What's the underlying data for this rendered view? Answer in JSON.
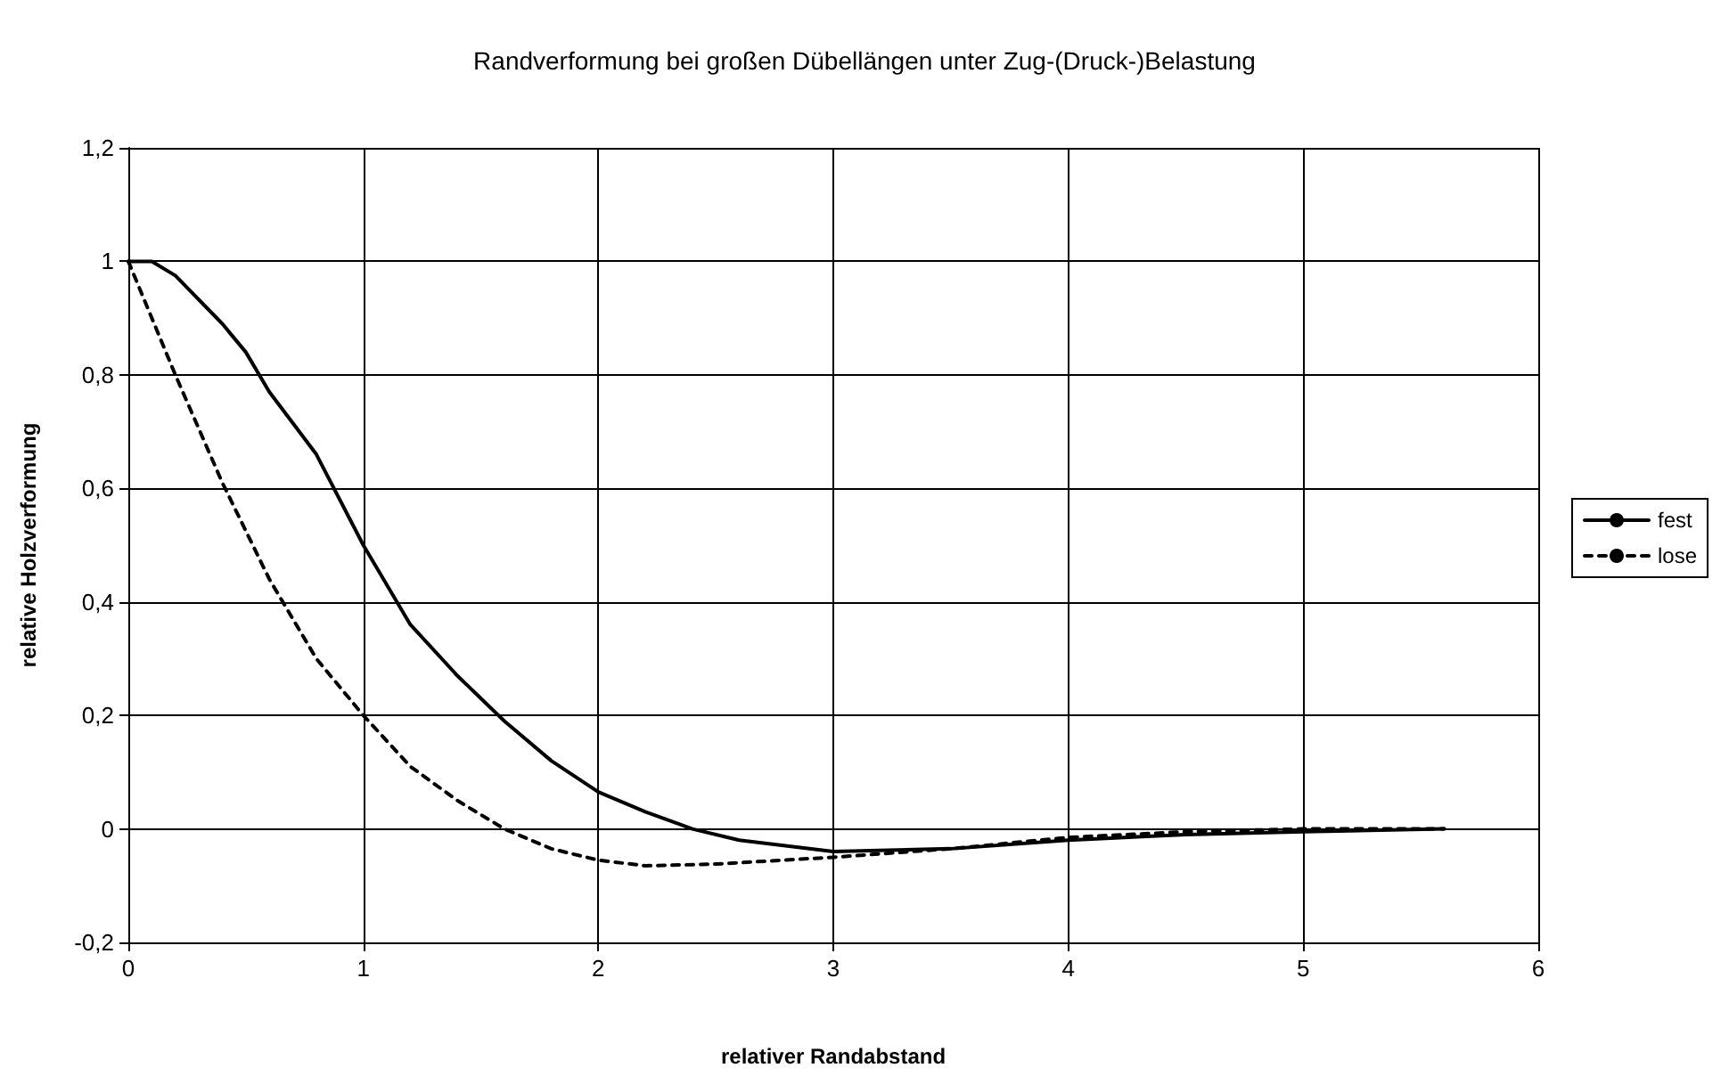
{
  "chart_data": {
    "type": "line",
    "title": "Randverformung bei großen Dübellängen unter Zug-(Druck-)Belastung",
    "xlabel": "relativer Randabstand",
    "ylabel": "relative Holzverformung",
    "xlim": [
      0,
      6
    ],
    "xticks": [
      0,
      1,
      2,
      3,
      4,
      5,
      6
    ],
    "ylim": [
      -0.2,
      1.2
    ],
    "yticks": [
      {
        "value": -0.2,
        "label": "-0,2"
      },
      0,
      {
        "value": 0.2,
        "label": "0,2"
      },
      {
        "value": 0.4,
        "label": "0,4"
      },
      {
        "value": 0.6,
        "label": "0,6"
      },
      {
        "value": 0.8,
        "label": "0,8"
      },
      1,
      {
        "value": 1.2,
        "label": "1,2"
      }
    ],
    "grid": true,
    "legend": "right",
    "marker": "none",
    "series": [
      {
        "name": "fest",
        "color": "#000000",
        "line_style": "solid",
        "x": [
          0,
          0.1,
          0.2,
          0.4,
          0.5,
          0.6,
          0.8,
          1,
          1.2,
          1.4,
          1.6,
          1.8,
          2,
          2.2,
          2.4,
          2.6,
          3,
          3.5,
          4,
          4.5,
          5,
          5.6
        ],
        "values": [
          1,
          1,
          0.975,
          0.89,
          0.84,
          0.77,
          0.66,
          0.5,
          0.36,
          0.27,
          0.19,
          0.12,
          0.065,
          0.03,
          0,
          -0.02,
          -0.04,
          -0.035,
          -0.02,
          -0.01,
          -0.005,
          0
        ]
      },
      {
        "name": "lose",
        "color": "#000000",
        "line_style": "dashed",
        "x": [
          0,
          0.2,
          0.4,
          0.6,
          0.8,
          1,
          1.2,
          1.4,
          1.6,
          1.8,
          2,
          2.2,
          2.5,
          3,
          3.5,
          4,
          4.5,
          5,
          5.6
        ],
        "values": [
          1,
          0.8,
          0.61,
          0.44,
          0.3,
          0.2,
          0.11,
          0.05,
          0,
          -0.035,
          -0.055,
          -0.065,
          -0.062,
          -0.05,
          -0.035,
          -0.015,
          -0.005,
          0,
          0
        ]
      }
    ]
  }
}
